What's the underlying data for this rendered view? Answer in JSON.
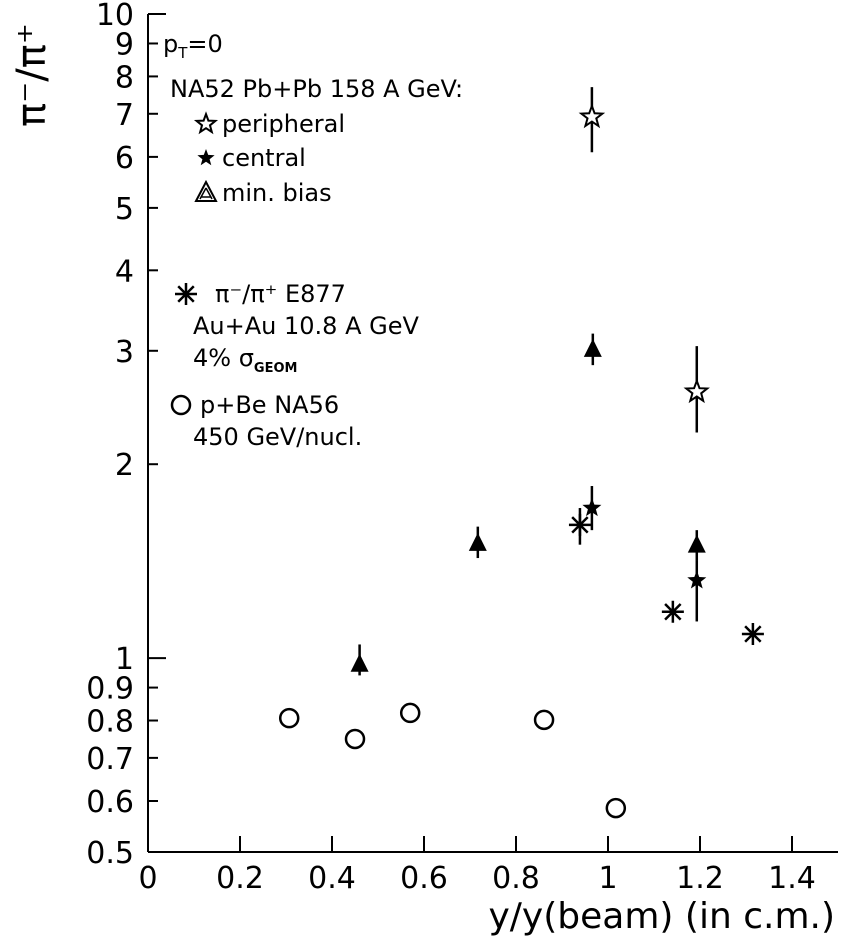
{
  "chart_data": {
    "type": "scatter",
    "x_label": "y/y(beam) (in c.m.)",
    "y_label": "π⁻/π⁺",
    "annotation": {
      "text": "p",
      "sub": "T",
      "rest": "=0"
    },
    "legend_title": "NA52 Pb+Pb 158 A GeV:",
    "xlim": [
      0,
      1.5
    ],
    "xticks": [
      0,
      0.2,
      0.4,
      0.6,
      0.8,
      1,
      1.2,
      1.4
    ],
    "ylim": [
      0.5,
      10
    ],
    "yticks": [
      0.5,
      0.6,
      0.7,
      0.8,
      0.9,
      1,
      2,
      3,
      4,
      5,
      6,
      7,
      8,
      9,
      10
    ],
    "ylog": true,
    "series": [
      {
        "name": "peripheral",
        "marker": "open-star",
        "color": "#000000",
        "x": [
          0.965,
          1.193
        ],
        "values": [
          6.92,
          2.59
        ],
        "y_low": [
          6.1,
          2.24
        ],
        "y_high": [
          7.7,
          3.05
        ]
      },
      {
        "name": "central",
        "marker": "filled-star",
        "color": "#000000",
        "x": [
          0.965,
          1.193
        ],
        "values": [
          1.71,
          1.32
        ],
        "y_low": [
          1.58,
          1.14
        ],
        "y_high": [
          1.85,
          1.42
        ]
      },
      {
        "name": "min. bias",
        "marker": "triangle",
        "color": "#000000",
        "x": [
          0.46,
          0.717,
          0.967,
          1.193
        ],
        "values": [
          0.98,
          1.51,
          3.02,
          1.5
        ],
        "y_low": [
          0.94,
          1.43,
          2.85,
          1.42
        ],
        "y_high": [
          1.05,
          1.6,
          3.19,
          1.58
        ]
      },
      {
        "name": "π⁻/π⁺ E877",
        "marker": "asterisk",
        "color": "#000000",
        "notes": [
          {
            "text": "Au+Au 10.8 A GeV"
          },
          {
            "text": "4%  σ",
            "sub": "GEOM"
          }
        ],
        "x": [
          0.939,
          1.141,
          1.315
        ],
        "values": [
          1.61,
          1.18,
          1.09
        ],
        "y_low": [
          1.5,
          null,
          null
        ],
        "y_high": [
          1.71,
          null,
          null
        ]
      },
      {
        "name": "p+Be NA56",
        "marker": "circle",
        "color": "#000000",
        "notes": [
          {
            "text": "450 GeV/nucl."
          }
        ],
        "x": [
          0.307,
          0.45,
          0.57,
          0.861,
          1.017
        ],
        "values": [
          0.807,
          0.749,
          0.822,
          0.802,
          0.585
        ]
      }
    ]
  }
}
